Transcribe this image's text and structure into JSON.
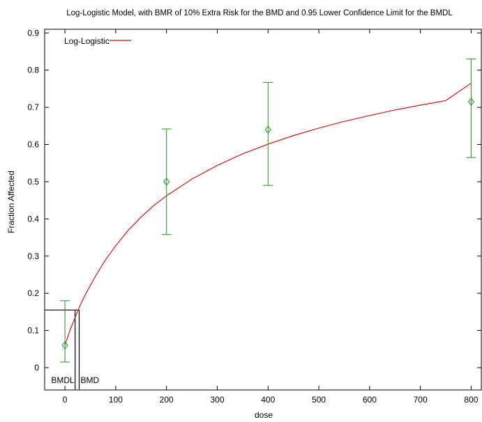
{
  "chart_data": {
    "type": "scatter",
    "title": "Log-Logistic Model, with BMR of 10% Extra Risk for the BMD and 0.95 Lower Confidence Limit for the BMDL",
    "xlabel": "dose",
    "ylabel": "Fraction Affected",
    "xlim": [
      -40,
      820
    ],
    "ylim": [
      -0.06,
      0.91
    ],
    "x_ticks": [
      0,
      100,
      200,
      300,
      400,
      500,
      600,
      700,
      800
    ],
    "y_ticks": [
      0,
      0.1,
      0.2,
      0.3,
      0.4,
      0.5,
      0.6,
      0.7,
      0.8,
      0.9
    ],
    "legend": {
      "position": "top-left",
      "entries": [
        {
          "label": "Log-Logistic",
          "color": "#e00000"
        }
      ]
    },
    "series": [
      {
        "kind": "observed",
        "color": "#2e9e2e",
        "marker": "diamond",
        "points": [
          {
            "x": 0,
            "y": 0.06,
            "lower": 0.015,
            "upper": 0.18
          },
          {
            "x": 200,
            "y": 0.5,
            "lower": 0.358,
            "upper": 0.642
          },
          {
            "x": 400,
            "y": 0.64,
            "lower": 0.49,
            "upper": 0.767
          },
          {
            "x": 800,
            "y": 0.715,
            "lower": 0.565,
            "upper": 0.83
          }
        ]
      },
      {
        "kind": "model",
        "name": "Log-Logistic",
        "color": "#e00000",
        "x": [
          0,
          10,
          20,
          30,
          40,
          60,
          80,
          100,
          125,
          150,
          175,
          200,
          250,
          300,
          350,
          400,
          450,
          500,
          550,
          600,
          650,
          700,
          750,
          800
        ],
        "y": [
          0.06,
          0.101,
          0.135,
          0.168,
          0.196,
          0.246,
          0.29,
          0.328,
          0.37,
          0.405,
          0.436,
          0.462,
          0.507,
          0.544,
          0.575,
          0.601,
          0.624,
          0.644,
          0.662,
          0.678,
          0.693,
          0.706,
          0.718,
          0.765
        ]
      }
    ],
    "annotations": {
      "bmr_level": 0.155,
      "bmdl": {
        "label": "BMDL",
        "x": 20
      },
      "bmd": {
        "label": "BMD",
        "x": 28
      }
    }
  }
}
